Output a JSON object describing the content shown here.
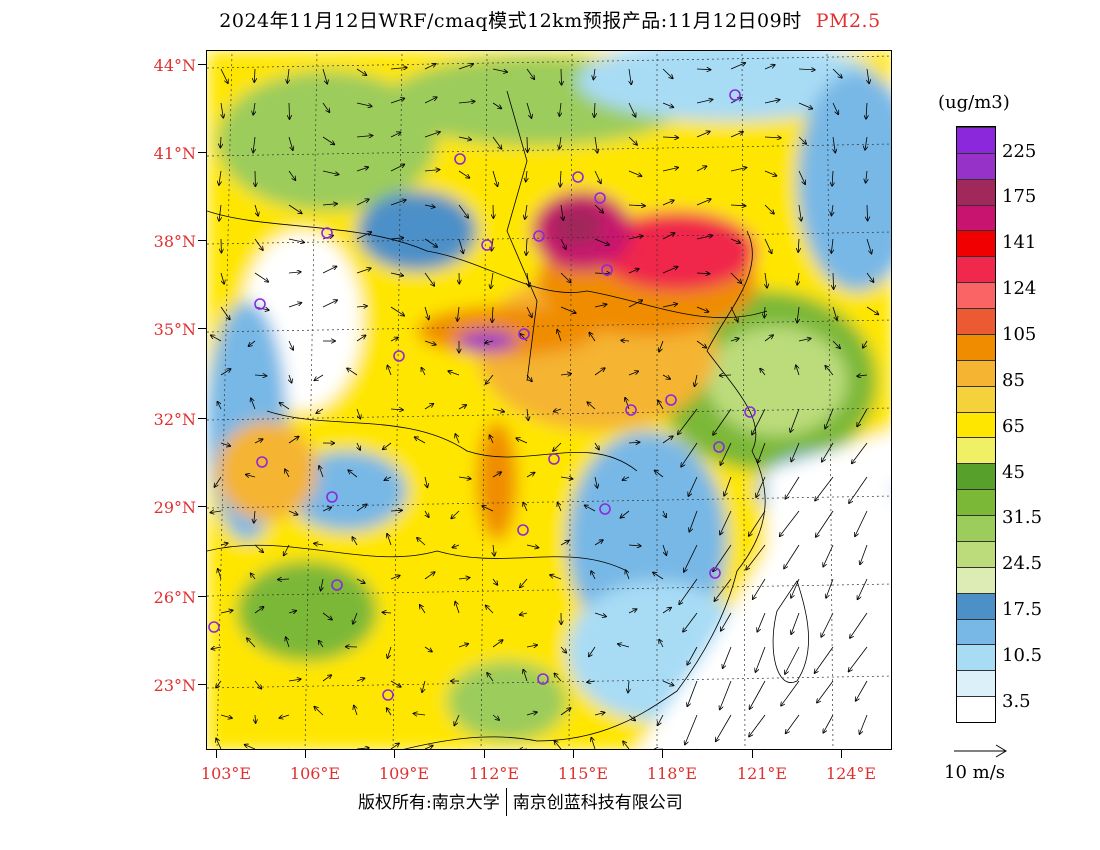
{
  "title": {
    "text": "2024年11月12日WRF/cmaq模式12km预报产品:11月12日09时",
    "variable": "PM2.5"
  },
  "colors": {
    "label_red": "#e03030",
    "bins": [
      "#ffffff",
      "#dcf0fa",
      "#a8dcf5",
      "#78b8e6",
      "#4c90c8",
      "#dcecb4",
      "#bcdc7c",
      "#9ccc5c",
      "#7cb838",
      "#58a02c",
      "#f0f066",
      "#ffe600",
      "#f5d23c",
      "#f5b432",
      "#f08c00",
      "#eb5a32",
      "#fa6464",
      "#f0284b",
      "#f00000",
      "#c8146e",
      "#a0285a",
      "#9632c8",
      "#8c28dc"
    ]
  },
  "legend": {
    "units": "(ug/m3)",
    "labels": [
      "225",
      "175",
      "141",
      "124",
      "105",
      "85",
      "65",
      "45",
      "31.5",
      "24.5",
      "17.5",
      "10.5",
      "3.5"
    ]
  },
  "axes": {
    "lat_labels": [
      "44°N",
      "41°N",
      "38°N",
      "35°N",
      "32°N",
      "29°N",
      "26°N",
      "23°N"
    ],
    "lon_labels": [
      "103°E",
      "106°E",
      "109°E",
      "112°E",
      "115°E",
      "118°E",
      "121°E",
      "124°E"
    ]
  },
  "wind_key": {
    "label": "10 m/s"
  },
  "copyright": {
    "left": "版权所有:南京大学",
    "right": "南京创蓝科技有限公司"
  }
}
